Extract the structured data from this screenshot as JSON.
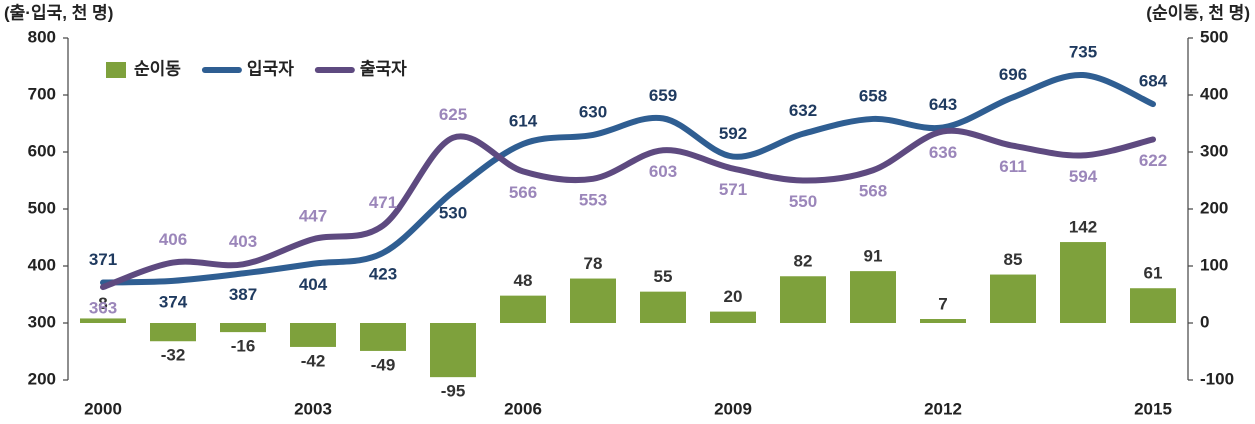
{
  "chart_data": {
    "type": "combo",
    "ylabel": "(출·입국, 천 명)",
    "y2label": "(순이동, 천 명)",
    "categories": [
      "2000",
      null,
      null,
      "2003",
      null,
      null,
      "2006",
      null,
      null,
      "2009",
      null,
      null,
      "2012",
      null,
      null,
      "2015"
    ],
    "series": [
      {
        "name": "순이동",
        "type": "bar",
        "axis": "y2",
        "color": "#7ea13c",
        "label_color": "#333333",
        "values": [
          8,
          -32,
          -16,
          -42,
          -49,
          -95,
          48,
          78,
          55,
          20,
          82,
          91,
          7,
          85,
          142,
          61
        ]
      },
      {
        "name": "입국자",
        "type": "line",
        "color": "#2f5e92",
        "label_color": "#1f3a5f",
        "values": [
          371,
          374,
          387,
          404,
          423,
          530,
          614,
          630,
          659,
          592,
          632,
          658,
          643,
          696,
          735,
          684
        ]
      },
      {
        "name": "출국자",
        "type": "line",
        "color": "#5e4a80",
        "label_color": "#9b86ba",
        "values": [
          363,
          406,
          403,
          447,
          471,
          625,
          566,
          553,
          603,
          571,
          550,
          568,
          636,
          611,
          594,
          622
        ]
      }
    ],
    "ylim": [
      200,
      800
    ],
    "yticks": [
      200,
      300,
      400,
      500,
      600,
      700,
      800
    ],
    "y2lim": [
      -100,
      500
    ],
    "y2ticks": [
      -100,
      0,
      100,
      200,
      300,
      400,
      500
    ],
    "legend": "upper left",
    "grid": false
  }
}
